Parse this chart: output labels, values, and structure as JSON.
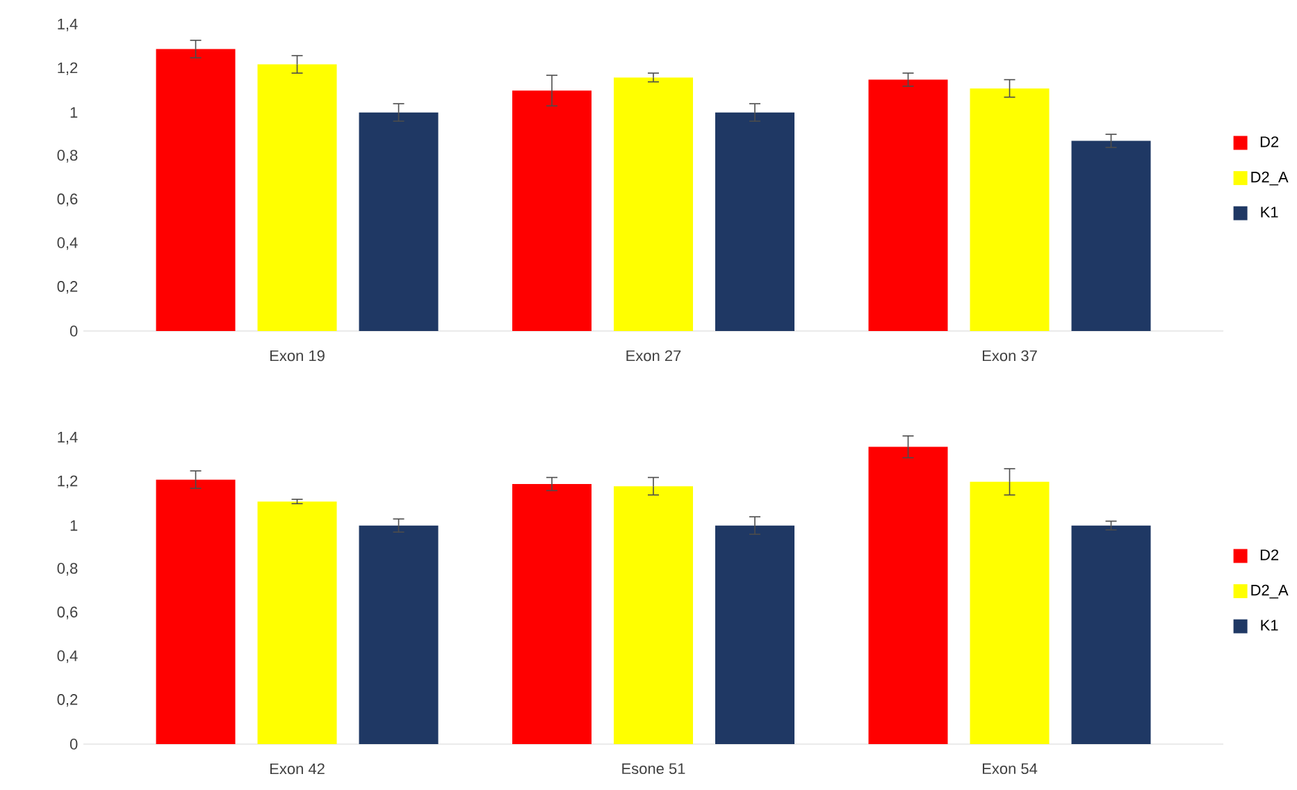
{
  "chart_data": [
    {
      "type": "bar",
      "categories": [
        "Exon 19",
        "Exon 27",
        "Exon 37"
      ],
      "series": [
        {
          "name": "D2",
          "color": "#ff0000",
          "values": [
            1.29,
            1.1,
            1.15
          ],
          "errors": [
            0.04,
            0.07,
            0.03
          ]
        },
        {
          "name": "D2_A",
          "color": "#ffff00",
          "values": [
            1.22,
            1.16,
            1.11
          ],
          "errors": [
            0.04,
            0.02,
            0.04
          ]
        },
        {
          "name": "K1",
          "color": "#1f3864",
          "values": [
            1.0,
            1.0,
            0.87
          ],
          "errors": [
            0.04,
            0.04,
            0.03
          ]
        }
      ],
      "ylim": [
        0,
        1.4
      ],
      "yticks": [
        0,
        {
          "value": 0.2,
          "label": "0,2"
        },
        {
          "value": 0.4,
          "label": "0,4"
        },
        {
          "value": 0.6,
          "label": "0,6"
        },
        {
          "value": 0.8,
          "label": "0,8"
        },
        1,
        {
          "value": 1.2,
          "label": "1,2"
        },
        {
          "value": 1.4,
          "label": "1,4"
        }
      ],
      "grid": false,
      "legend": "right"
    },
    {
      "type": "bar",
      "categories": [
        "Exon 42",
        "Esone 51",
        "Exon 54"
      ],
      "series": [
        {
          "name": "D2",
          "color": "#ff0000",
          "values": [
            1.21,
            1.19,
            1.36
          ],
          "errors": [
            0.04,
            0.03,
            0.05
          ]
        },
        {
          "name": "D2_A",
          "color": "#ffff00",
          "values": [
            1.11,
            1.18,
            1.2
          ],
          "errors": [
            0.01,
            0.04,
            0.06
          ]
        },
        {
          "name": "K1",
          "color": "#1f3864",
          "values": [
            1.0,
            1.0,
            1.0
          ],
          "errors": [
            0.03,
            0.04,
            0.02
          ]
        }
      ],
      "ylim": [
        0,
        1.4
      ],
      "yticks": [
        0,
        {
          "value": 0.2,
          "label": "0,2"
        },
        {
          "value": 0.4,
          "label": "0,4"
        },
        {
          "value": 0.6,
          "label": "0,6"
        },
        {
          "value": 0.8,
          "label": "0,8"
        },
        1,
        {
          "value": 1.2,
          "label": "1,2"
        },
        {
          "value": 1.4,
          "label": "1,4"
        }
      ],
      "grid": false,
      "legend": "right"
    }
  ]
}
